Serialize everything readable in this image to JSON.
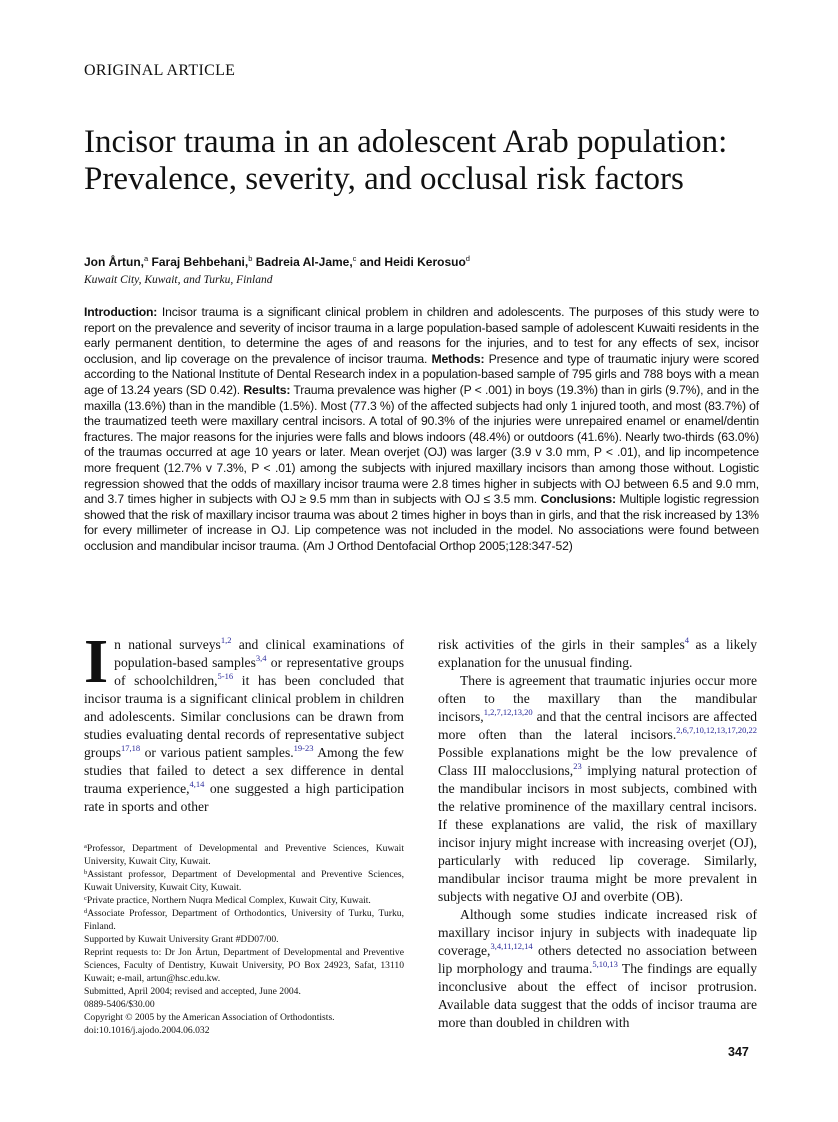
{
  "section_label": "ORIGINAL ARTICLE",
  "title": "Incisor trauma in an adolescent Arab population: Prevalence, severity, and occlusal risk factors",
  "authors": [
    {
      "name": "Jon Årtun,",
      "mark": "a"
    },
    {
      "name": "Faraj Behbehani,",
      "mark": "b"
    },
    {
      "name": "Badreia Al-Jame,",
      "mark": "c"
    },
    {
      "name": "and Heidi Kerosuo",
      "mark": "d"
    }
  ],
  "affiliation": "Kuwait City, Kuwait, and Turku, Finland",
  "abstract": [
    {
      "b": "Introduction:"
    },
    {
      "t": " Incisor trauma is a significant clinical problem in children and adolescents. The purposes of this study were to report on the prevalence and severity of incisor trauma in a large population-based sample of adolescent Kuwaiti residents in the early permanent dentition, to determine the ages of and reasons for the injuries, and to test for any effects of sex, incisor occlusion, and lip coverage on the prevalence of incisor trauma. "
    },
    {
      "b": "Methods:"
    },
    {
      "t": " Presence and type of traumatic injury were scored according to the National Institute of Dental Research index in a population-based sample of 795 girls and 788 boys with a mean age of 13.24 years (SD 0.42). "
    },
    {
      "b": "Results:"
    },
    {
      "t": " Trauma prevalence was higher (P < .001) in boys (19.3%) than in girls (9.7%), and in the maxilla (13.6%) than in the mandible (1.5%). Most (77.3 %) of the affected subjects had only 1 injured tooth, and most (83.7%) of the traumatized teeth were maxillary central incisors. A total of 90.3% of the injuries were unrepaired enamel or enamel/dentin fractures. The major reasons for the injuries were falls and blows indoors (48.4%) or outdoors (41.6%). Nearly two-thirds (63.0%) of the traumas occurred at age 10 years or later. Mean overjet (OJ) was larger (3.9 v 3.0 mm, P < .01), and lip incompetence more frequent (12.7% v 7.3%, P < .01) among the subjects with injured maxillary incisors than among those without. Logistic regression showed that the odds of maxillary incisor trauma were 2.8 times higher in subjects with OJ between 6.5 and 9.0 mm, and 3.7 times higher in subjects with OJ ≥ 9.5 mm than in subjects with OJ ≤ 3.5 mm. "
    },
    {
      "b": "Conclusions:"
    },
    {
      "t": " Multiple logistic regression showed that the risk of maxillary incisor trauma was about 2 times higher in boys than in girls, and that the risk increased by 13% for every millimeter of increase in OJ. Lip competence was not included in the model. No associations were found between occlusion and mandibular incisor trauma. (Am J Orthod Dentofacial Orthop 2005;128:347-52)"
    }
  ],
  "body_left": {
    "dropcap": "I",
    "paragraphs": [
      [
        {
          "t": "n national surveys"
        },
        {
          "sup": "1,2"
        },
        {
          "t": " and clinical examinations of population-based samples"
        },
        {
          "sup": "3,4"
        },
        {
          "t": " or representative groups of schoolchildren,"
        },
        {
          "sup": "5-16"
        },
        {
          "t": " it has been concluded that incisor trauma is a significant clinical problem in children and adolescents. Similar conclusions can be drawn from studies evaluating dental records of representative subject groups"
        },
        {
          "sup": "17,18"
        },
        {
          "t": " or various patient samples."
        },
        {
          "sup": "19-23"
        },
        {
          "t": " Among the few studies that failed to detect a sex difference in dental trauma experience,"
        },
        {
          "sup": "4,14"
        },
        {
          "t": " one suggested a high participation rate in sports and other"
        }
      ]
    ]
  },
  "body_right": {
    "paragraphs": [
      [
        {
          "t": "risk activities of the girls in their samples"
        },
        {
          "sup": "4"
        },
        {
          "t": " as a likely explanation for the unusual finding."
        }
      ],
      [
        {
          "t": "There is agreement that traumatic injuries occur more often to the maxillary than the mandibular incisors,"
        },
        {
          "sup": "1,2,7,12,13,20"
        },
        {
          "t": " and that the central incisors are affected more often than the lateral incisors."
        },
        {
          "sup": "2,6,7,10,12,13,17,20,22"
        },
        {
          "t": " Possible explanations might be the low prevalence of Class III malocclusions,"
        },
        {
          "sup": "23"
        },
        {
          "t": " implying natural protection of the mandibular incisors in most subjects, combined with the relative prominence of the maxillary central incisors. If these explanations are valid, the risk of maxillary incisor injury might increase with increasing overjet (OJ), particularly with reduced lip coverage. Similarly, mandibular incisor trauma might be more prevalent in subjects with negative OJ and overbite (OB)."
        }
      ],
      [
        {
          "t": "Although some studies indicate increased risk of maxillary incisor injury in subjects with inadequate lip coverage,"
        },
        {
          "sup": "3,4,11,12,14"
        },
        {
          "t": " others detected no association between lip morphology and trauma."
        },
        {
          "sup": "5,10,13"
        },
        {
          "t": " The findings are equally inconclusive about the effect of incisor protrusion. Available data suggest that the odds of incisor trauma are more than doubled in children with"
        }
      ]
    ]
  },
  "footnotes": [
    {
      "mark": "a",
      "t": "Professor, Department of Developmental and Preventive Sciences, Kuwait University, Kuwait City, Kuwait."
    },
    {
      "mark": "b",
      "t": "Assistant professor, Department of Developmental and Preventive Sciences, Kuwait University, Kuwait City, Kuwait."
    },
    {
      "mark": "c",
      "t": "Private practice, Northern Nuqra Medical Complex, Kuwait City, Kuwait."
    },
    {
      "mark": "d",
      "t": "Associate Professor, Department of Orthodontics, University of Turku, Turku, Finland."
    },
    {
      "mark": "",
      "t": "Supported by Kuwait University Grant #DD07/00."
    },
    {
      "mark": "",
      "t": "Reprint requests to: Dr Jon Årtun, Department of Developmental and Preventive Sciences, Faculty of Dentistry, Kuwait University, PO Box 24923, Safat, 13110 Kuwait; e-mail, artun@hsc.edu.kw."
    },
    {
      "mark": "",
      "t": "Submitted, April 2004; revised and accepted, June 2004."
    },
    {
      "mark": "",
      "t": "0889-5406/$30.00"
    },
    {
      "mark": "",
      "t": "Copyright © 2005 by the American Association of Orthodontists."
    },
    {
      "mark": "",
      "t": "doi:10.1016/j.ajodo.2004.06.032"
    }
  ],
  "page_number": "347",
  "colors": {
    "citation": "#2a2a9a",
    "text": "#111111"
  }
}
